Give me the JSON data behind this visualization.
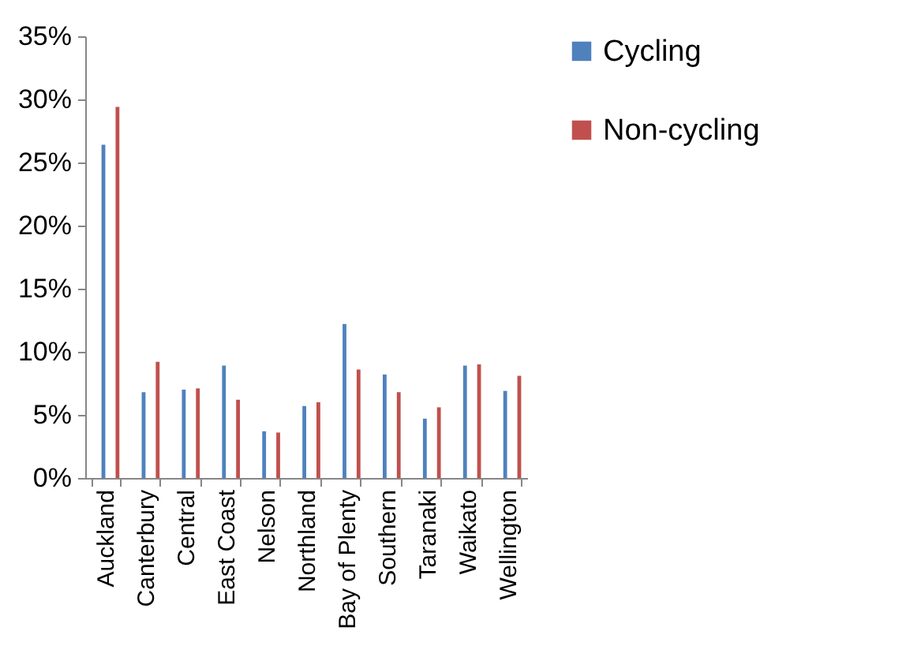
{
  "chart_data": {
    "type": "bar",
    "categories": [
      "Auckland",
      "Canterbury",
      "Central",
      "East Coast",
      "Nelson",
      "Northland",
      "Bay of Plenty",
      "Southern",
      "Taranaki",
      "Waikato",
      "Wellington"
    ],
    "series": [
      {
        "name": "Cycling",
        "color": "#4f81bd",
        "values": [
          26.4,
          6.8,
          7.0,
          8.9,
          3.7,
          5.7,
          12.2,
          8.2,
          4.7,
          8.9,
          6.9
        ]
      },
      {
        "name": "Non-cycling",
        "color": "#c0504d",
        "values": [
          29.4,
          9.2,
          7.1,
          6.2,
          3.6,
          6.0,
          8.6,
          6.8,
          5.6,
          9.0,
          8.1
        ]
      }
    ],
    "ylim": [
      0,
      35
    ],
    "yticks": [
      {
        "value": 0,
        "label": "0%"
      },
      {
        "value": 5,
        "label": "5%"
      },
      {
        "value": 10,
        "label": "10%"
      },
      {
        "value": 15,
        "label": "15%"
      },
      {
        "value": 20,
        "label": "20%"
      },
      {
        "value": 25,
        "label": "25%"
      },
      {
        "value": 30,
        "label": "30%"
      },
      {
        "value": 35,
        "label": "35%"
      }
    ],
    "grid": false,
    "legend": "right"
  }
}
